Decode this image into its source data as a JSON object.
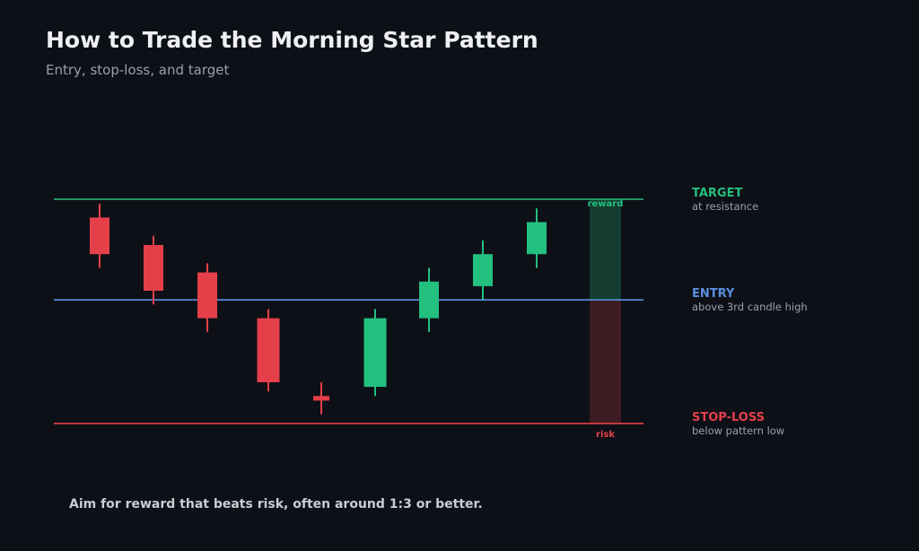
{
  "header": {
    "title": "How to Trade the Morning Star Pattern",
    "subtitle": "Entry, stop-loss, and target"
  },
  "colors": {
    "bearish": "#e5404a",
    "bullish": "#23c07f",
    "target": "#23c07f",
    "entry": "#5b8fe0",
    "stop": "#e5404a",
    "reward_zone": "#153d31",
    "risk_zone": "#3d1d23"
  },
  "levels": {
    "target": {
      "label": "TARGET",
      "note": "at resistance",
      "price": 100
    },
    "entry": {
      "label": "ENTRY",
      "note": "above 3rd candle high",
      "price": 78
    },
    "stop": {
      "label": "STOP-LOSS",
      "note": "below pattern low",
      "price": 51
    }
  },
  "zones": {
    "reward_label": "reward",
    "risk_label": "risk"
  },
  "candles": [
    {
      "direction": "bearish",
      "open": 96,
      "close": 88,
      "high": 99,
      "low": 85
    },
    {
      "direction": "bearish",
      "open": 90,
      "close": 80,
      "high": 92,
      "low": 77
    },
    {
      "direction": "bearish",
      "open": 84,
      "close": 74,
      "high": 86,
      "low": 71
    },
    {
      "direction": "bearish",
      "open": 74,
      "close": 60,
      "high": 76,
      "low": 58
    },
    {
      "direction": "bearish",
      "open": 57,
      "close": 56,
      "high": 60,
      "low": 53
    },
    {
      "direction": "bullish",
      "open": 59,
      "close": 74,
      "high": 76,
      "low": 57
    },
    {
      "direction": "bullish",
      "open": 74,
      "close": 82,
      "high": 85,
      "low": 71
    },
    {
      "direction": "bullish",
      "open": 81,
      "close": 88,
      "high": 91,
      "low": 78
    },
    {
      "direction": "bullish",
      "open": 88,
      "close": 95,
      "high": 98,
      "low": 85
    }
  ],
  "footer_note": "Aim for reward that beats risk, often around 1:3 or better."
}
